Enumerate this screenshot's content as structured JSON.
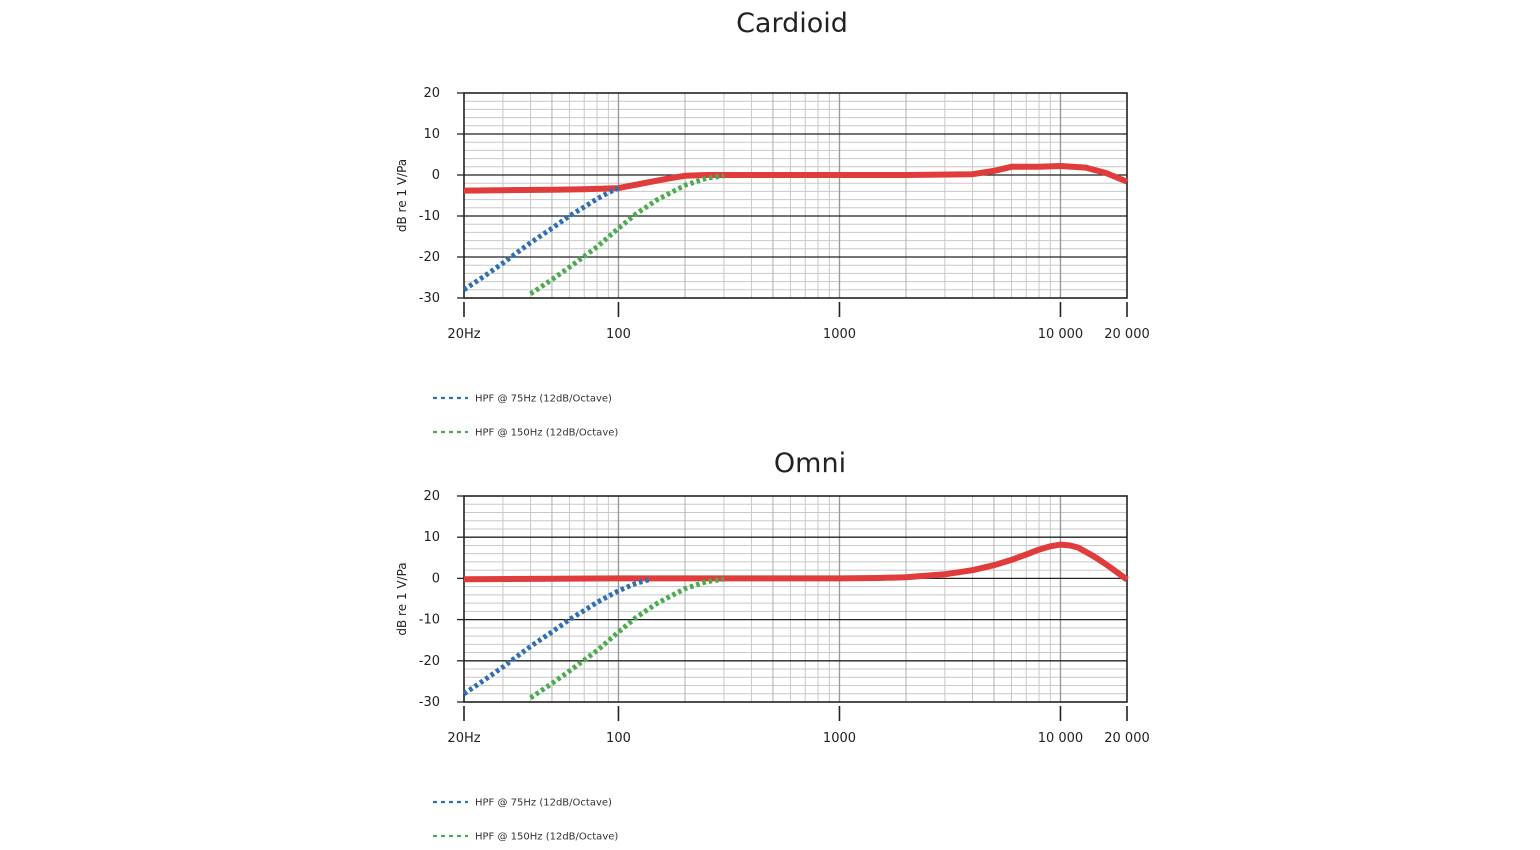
{
  "colors": {
    "response": "#e03c3c",
    "hpf75": "#2f6fb3",
    "hpf150": "#4bab4f",
    "grid_major": "#222222",
    "grid_minor": "#c8c8c8",
    "grid_decade": "#9a9a9a"
  },
  "chart_data": [
    {
      "type": "line",
      "title": "Cardioid",
      "xlabel": "",
      "ylabel": "dB re 1 V/Pa",
      "xscale": "log",
      "xlim": [
        20,
        20000
      ],
      "ylim": [
        -30,
        20
      ],
      "grid": true,
      "x_tick_labels": [
        {
          "value": 20,
          "label": "20Hz"
        },
        {
          "value": 100,
          "label": "100"
        },
        {
          "value": 1000,
          "label": "1000"
        },
        {
          "value": 10000,
          "label": "10 000"
        },
        {
          "value": 20000,
          "label": "20 000"
        }
      ],
      "y_ticks": [
        20,
        10,
        0,
        -10,
        -20,
        -30
      ],
      "legend_position": "bottom-left",
      "legend": [
        {
          "label": "HPF @ 75Hz (12dB/Octave)",
          "color": "#2f6fb3",
          "style": "dashed"
        },
        {
          "label": "HPF @ 150Hz (12dB/Octave)",
          "color": "#4bab4f",
          "style": "dashed"
        }
      ],
      "series": [
        {
          "role": "response",
          "color": "#e03c3c",
          "style": "solid",
          "x": [
            20,
            30,
            50,
            70,
            100,
            130,
            170,
            200,
            250,
            300,
            500,
            1000,
            2000,
            4000,
            5000,
            6000,
            8000,
            10000,
            13000,
            16000,
            20000
          ],
          "y": [
            -3.8,
            -3.7,
            -3.6,
            -3.5,
            -3.2,
            -2,
            -0.8,
            -0.2,
            0,
            0,
            0,
            0,
            0,
            0.2,
            1,
            2,
            2,
            2.2,
            1.8,
            0.5,
            -1.6
          ]
        },
        {
          "role": "hpf",
          "name": "HPF @ 75Hz (12dB/Octave)",
          "color": "#2f6fb3",
          "style": "dotted",
          "x": [
            20,
            25,
            30,
            40,
            50,
            60,
            70,
            80,
            90,
            100
          ],
          "y": [
            -28,
            -24.5,
            -21.5,
            -16.5,
            -13,
            -10,
            -7.8,
            -5.8,
            -4.3,
            -3.2
          ]
        },
        {
          "role": "hpf",
          "name": "HPF @ 150Hz (12dB/Octave)",
          "color": "#4bab4f",
          "style": "dotted",
          "x": [
            40,
            50,
            60,
            80,
            100,
            120,
            150,
            200,
            250,
            300
          ],
          "y": [
            -29,
            -25.5,
            -22.5,
            -17.5,
            -13,
            -9.5,
            -6,
            -2.5,
            -0.8,
            -0.2
          ]
        }
      ]
    },
    {
      "type": "line",
      "title": "Omni",
      "xlabel": "",
      "ylabel": "dB re 1 V/Pa",
      "xscale": "log",
      "xlim": [
        20,
        20000
      ],
      "ylim": [
        -30,
        20
      ],
      "grid": true,
      "x_tick_labels": [
        {
          "value": 20,
          "label": "20Hz"
        },
        {
          "value": 100,
          "label": "100"
        },
        {
          "value": 1000,
          "label": "1000"
        },
        {
          "value": 10000,
          "label": "10 000"
        },
        {
          "value": 20000,
          "label": "20 000"
        }
      ],
      "y_ticks": [
        20,
        10,
        0,
        -10,
        -20,
        -30
      ],
      "legend_position": "bottom-left",
      "legend": [
        {
          "label": "HPF @ 75Hz (12dB/Octave)",
          "color": "#2f6fb3",
          "style": "dashed"
        },
        {
          "label": "HPF @ 150Hz (12dB/Octave)",
          "color": "#4bab4f",
          "style": "dashed"
        }
      ],
      "series": [
        {
          "role": "response",
          "color": "#e03c3c",
          "style": "solid",
          "x": [
            20,
            50,
            100,
            200,
            500,
            1000,
            1500,
            2000,
            3000,
            4000,
            5000,
            6000,
            7000,
            8000,
            9000,
            10000,
            11000,
            12000,
            14000,
            16000,
            18000,
            20000
          ],
          "y": [
            -0.2,
            -0.1,
            0,
            0,
            0,
            0,
            0.1,
            0.3,
            1,
            2,
            3.2,
            4.5,
            5.8,
            7,
            7.8,
            8.2,
            8,
            7.5,
            5.5,
            3.5,
            1.5,
            -0.3
          ]
        },
        {
          "role": "hpf",
          "name": "HPF @ 75Hz (12dB/Octave)",
          "color": "#2f6fb3",
          "style": "dotted",
          "x": [
            20,
            25,
            30,
            40,
            50,
            60,
            70,
            80,
            100,
            120,
            140
          ],
          "y": [
            -28,
            -24.5,
            -21.5,
            -16.5,
            -13,
            -10,
            -7.8,
            -5.8,
            -3,
            -1.2,
            -0.2
          ]
        },
        {
          "role": "hpf",
          "name": "HPF @ 150Hz (12dB/Octave)",
          "color": "#4bab4f",
          "style": "dotted",
          "x": [
            40,
            50,
            60,
            80,
            100,
            120,
            150,
            200,
            250,
            300
          ],
          "y": [
            -29,
            -25.5,
            -22.5,
            -17.5,
            -13,
            -9.5,
            -6,
            -2.5,
            -0.8,
            -0.2
          ]
        }
      ]
    }
  ]
}
